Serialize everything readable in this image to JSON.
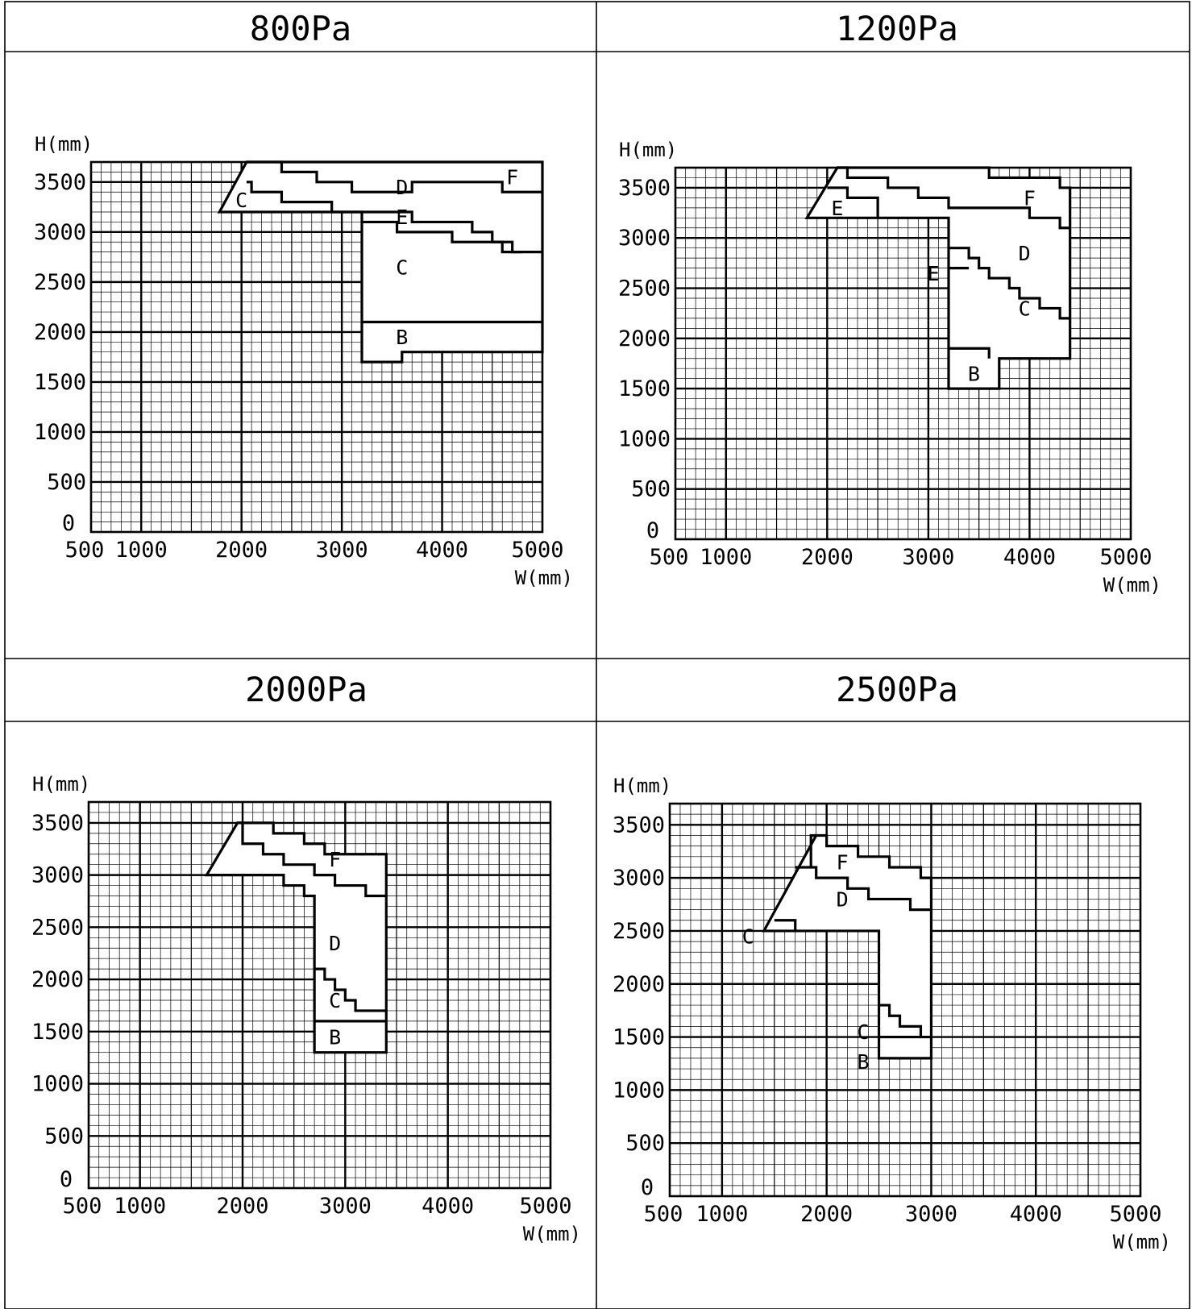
{
  "panels": [
    {
      "title": "800Pa",
      "chart_data": {
        "type": "area",
        "title": "800Pa",
        "xlabel": "W(mm)",
        "ylabel": "H(mm)",
        "xlim": [
          500,
          5000
        ],
        "ylim": [
          0,
          3500
        ],
        "xticks": [
          "500",
          "1000",
          "2000",
          "3000",
          "4000",
          "5000"
        ],
        "yticks": [
          "0",
          "500",
          "1000",
          "1500",
          "2000",
          "2500",
          "3000",
          "3500"
        ],
        "grid": true,
        "outline": [
          [
            1780,
            3200
          ],
          [
            2050,
            3700
          ],
          [
            5000,
            3700
          ],
          [
            5000,
            1800
          ],
          [
            3600,
            1800
          ],
          [
            3600,
            1700
          ],
          [
            3200,
            1700
          ],
          [
            3200,
            3200
          ]
        ],
        "boundaries": [
          [
            [
              2050,
              3700
            ],
            [
              2400,
              3700
            ],
            [
              2400,
              3600
            ],
            [
              2750,
              3600
            ],
            [
              2750,
              3500
            ],
            [
              3100,
              3500
            ],
            [
              3100,
              3400
            ],
            [
              3700,
              3400
            ],
            [
              3700,
              3500
            ],
            [
              4600,
              3500
            ],
            [
              4600,
              3400
            ],
            [
              5000,
              3400
            ]
          ],
          [
            [
              2050,
              3500
            ],
            [
              2100,
              3500
            ],
            [
              2100,
              3400
            ],
            [
              2400,
              3400
            ],
            [
              2400,
              3300
            ],
            [
              2900,
              3300
            ],
            [
              2900,
              3200
            ],
            [
              3700,
              3200
            ],
            [
              3700,
              3100
            ],
            [
              4300,
              3100
            ],
            [
              4300,
              3000
            ],
            [
              4500,
              3000
            ],
            [
              4500,
              2900
            ],
            [
              4700,
              2900
            ],
            [
              4700,
              2800
            ],
            [
              4800,
              2800
            ]
          ],
          [
            [
              3200,
              3100
            ],
            [
              3550,
              3100
            ],
            [
              3550,
              3000
            ],
            [
              4100,
              3000
            ],
            [
              4100,
              2900
            ],
            [
              4600,
              2900
            ],
            [
              4600,
              2800
            ],
            [
              5000,
              2800
            ]
          ],
          [
            [
              3200,
              2100
            ],
            [
              5000,
              2100
            ]
          ]
        ],
        "zone_labels": [
          {
            "text": "D",
            "x": 3600,
            "y": 3450
          },
          {
            "text": "F",
            "x": 4700,
            "y": 3550
          },
          {
            "text": "C",
            "x": 2000,
            "y": 3320
          },
          {
            "text": "E",
            "x": 3600,
            "y": 3150
          },
          {
            "text": "C",
            "x": 3600,
            "y": 2650
          },
          {
            "text": "B",
            "x": 3600,
            "y": 1950
          }
        ]
      }
    },
    {
      "title": "1200Pa",
      "chart_data": {
        "type": "area",
        "title": "1200Pa",
        "xlabel": "W(mm)",
        "ylabel": "H(mm)",
        "xlim": [
          500,
          5000
        ],
        "ylim": [
          0,
          3500
        ],
        "xticks": [
          "500",
          "1000",
          "2000",
          "3000",
          "4000",
          "5000"
        ],
        "yticks": [
          "0",
          "500",
          "1000",
          "1500",
          "2000",
          "2500",
          "3000",
          "3500"
        ],
        "grid": true,
        "outline": [
          [
            1800,
            3200
          ],
          [
            2100,
            3700
          ],
          [
            3600,
            3700
          ],
          [
            3600,
            3600
          ],
          [
            4300,
            3600
          ],
          [
            4300,
            3500
          ],
          [
            4400,
            3500
          ],
          [
            4400,
            1800
          ],
          [
            3700,
            1800
          ],
          [
            3700,
            1500
          ],
          [
            3200,
            1500
          ],
          [
            3200,
            3200
          ]
        ],
        "boundaries": [
          [
            [
              2100,
              3700
            ],
            [
              2200,
              3700
            ],
            [
              2200,
              3600
            ],
            [
              2600,
              3600
            ],
            [
              2600,
              3500
            ],
            [
              2900,
              3500
            ],
            [
              2900,
              3400
            ],
            [
              3200,
              3400
            ],
            [
              3200,
              3300
            ],
            [
              4000,
              3300
            ],
            [
              4000,
              3200
            ],
            [
              4300,
              3200
            ],
            [
              4300,
              3100
            ],
            [
              4400,
              3100
            ]
          ],
          [
            [
              2000,
              3500
            ],
            [
              2200,
              3500
            ],
            [
              2200,
              3400
            ],
            [
              2500,
              3400
            ],
            [
              2500,
              3200
            ]
          ],
          [
            [
              3200,
              2900
            ],
            [
              3400,
              2900
            ],
            [
              3400,
              2800
            ],
            [
              3500,
              2800
            ],
            [
              3500,
              2700
            ],
            [
              3600,
              2700
            ],
            [
              3600,
              2600
            ],
            [
              3800,
              2600
            ],
            [
              3800,
              2500
            ],
            [
              3900,
              2500
            ],
            [
              3900,
              2400
            ],
            [
              4100,
              2400
            ],
            [
              4100,
              2300
            ],
            [
              4300,
              2300
            ],
            [
              4300,
              2200
            ],
            [
              4400,
              2200
            ]
          ],
          [
            [
              3200,
              2700
            ],
            [
              3400,
              2700
            ]
          ],
          [
            [
              3200,
              1900
            ],
            [
              3600,
              1900
            ],
            [
              3600,
              1800
            ]
          ]
        ],
        "zone_labels": [
          {
            "text": "E",
            "x": 2100,
            "y": 3300
          },
          {
            "text": "F",
            "x": 4000,
            "y": 3400
          },
          {
            "text": "D",
            "x": 3950,
            "y": 2850
          },
          {
            "text": "E",
            "x": 3050,
            "y": 2650
          },
          {
            "text": "C",
            "x": 3950,
            "y": 2300
          },
          {
            "text": "B",
            "x": 3450,
            "y": 1650
          }
        ]
      }
    },
    {
      "title": "2000Pa",
      "chart_data": {
        "type": "area",
        "title": "2000Pa",
        "xlabel": "W(mm)",
        "ylabel": "H(mm)",
        "xlim": [
          500,
          5000
        ],
        "ylim": [
          0,
          3500
        ],
        "xticks": [
          "500",
          "1000",
          "2000",
          "3000",
          "4000",
          "5000"
        ],
        "yticks": [
          "0",
          "500",
          "1000",
          "1500",
          "2000",
          "2500",
          "3000",
          "3500"
        ],
        "grid": true,
        "outline": [
          [
            1650,
            3000
          ],
          [
            1950,
            3500
          ],
          [
            2300,
            3500
          ],
          [
            2300,
            3400
          ],
          [
            2600,
            3400
          ],
          [
            2600,
            3300
          ],
          [
            2800,
            3300
          ],
          [
            2800,
            3200
          ],
          [
            3400,
            3200
          ],
          [
            3400,
            1300
          ],
          [
            2700,
            1300
          ],
          [
            2700,
            2800
          ],
          [
            2600,
            2800
          ],
          [
            2600,
            2900
          ],
          [
            2400,
            2900
          ],
          [
            2400,
            3000
          ],
          [
            1650,
            3000
          ]
        ],
        "boundaries": [
          [
            [
              1950,
              3500
            ],
            [
              2000,
              3500
            ],
            [
              2000,
              3300
            ],
            [
              2200,
              3300
            ],
            [
              2200,
              3200
            ],
            [
              2400,
              3200
            ],
            [
              2400,
              3100
            ],
            [
              2700,
              3100
            ],
            [
              2700,
              3000
            ],
            [
              2900,
              3000
            ],
            [
              2900,
              2900
            ],
            [
              3200,
              2900
            ],
            [
              3200,
              2800
            ],
            [
              3400,
              2800
            ]
          ],
          [
            [
              2700,
              2100
            ],
            [
              2800,
              2100
            ],
            [
              2800,
              2000
            ],
            [
              2900,
              2000
            ],
            [
              2900,
              1900
            ],
            [
              3000,
              1900
            ],
            [
              3000,
              1800
            ],
            [
              3100,
              1800
            ],
            [
              3100,
              1700
            ],
            [
              3200,
              1700
            ],
            [
              3200,
              1700
            ],
            [
              3400,
              1700
            ]
          ],
          [
            [
              2700,
              1600
            ],
            [
              3400,
              1600
            ]
          ]
        ],
        "zone_labels": [
          {
            "text": "F",
            "x": 2900,
            "y": 3150
          },
          {
            "text": "D",
            "x": 2900,
            "y": 2350
          },
          {
            "text": "C",
            "x": 2900,
            "y": 1800
          },
          {
            "text": "B",
            "x": 2900,
            "y": 1450
          }
        ]
      }
    },
    {
      "title": "2500Pa",
      "chart_data": {
        "type": "area",
        "title": "2500Pa",
        "xlabel": "W(mm)",
        "ylabel": "H(mm)",
        "xlim": [
          500,
          5000
        ],
        "ylim": [
          0,
          3500
        ],
        "xticks": [
          "500",
          "1000",
          "2000",
          "3000",
          "4000",
          "5000"
        ],
        "yticks": [
          "0",
          "500",
          "1000",
          "1500",
          "2000",
          "2500",
          "3000",
          "3500"
        ],
        "grid": true,
        "outline": [
          [
            1400,
            2500
          ],
          [
            1900,
            3400
          ],
          [
            2000,
            3400
          ],
          [
            2000,
            3300
          ],
          [
            2300,
            3300
          ],
          [
            2300,
            3200
          ],
          [
            2600,
            3200
          ],
          [
            2600,
            3100
          ],
          [
            2900,
            3100
          ],
          [
            2900,
            3000
          ],
          [
            3000,
            3000
          ],
          [
            3000,
            1300
          ],
          [
            2500,
            1300
          ],
          [
            2500,
            2500
          ],
          [
            1400,
            2500
          ]
        ],
        "boundaries": [
          [
            [
              1900,
              3400
            ],
            [
              1900,
              3400
            ],
            [
              1850,
              3400
            ],
            [
              1850,
              3100
            ],
            [
              1700,
              3100
            ],
            [
              1700,
              3100
            ],
            [
              1900,
              3100
            ],
            [
              1900,
              3000
            ],
            [
              2200,
              3000
            ],
            [
              2200,
              2900
            ],
            [
              2400,
              2900
            ],
            [
              2400,
              2800
            ],
            [
              2800,
              2800
            ],
            [
              2800,
              2700
            ],
            [
              3000,
              2700
            ]
          ],
          [
            [
              1500,
              2600
            ],
            [
              1700,
              2600
            ],
            [
              1700,
              2500
            ]
          ],
          [
            [
              2500,
              1800
            ],
            [
              2600,
              1800
            ],
            [
              2600,
              1700
            ],
            [
              2700,
              1700
            ],
            [
              2700,
              1600
            ],
            [
              2900,
              1600
            ],
            [
              2900,
              1500
            ]
          ],
          [
            [
              2500,
              1500
            ],
            [
              3000,
              1500
            ]
          ]
        ],
        "zone_labels": [
          {
            "text": "F",
            "x": 2150,
            "y": 3150
          },
          {
            "text": "D",
            "x": 2150,
            "y": 2800
          },
          {
            "text": "C",
            "x": 1250,
            "y": 2450
          },
          {
            "text": "C",
            "x": 2350,
            "y": 1550
          },
          {
            "text": "B",
            "x": 2350,
            "y": 1270
          }
        ]
      }
    }
  ]
}
